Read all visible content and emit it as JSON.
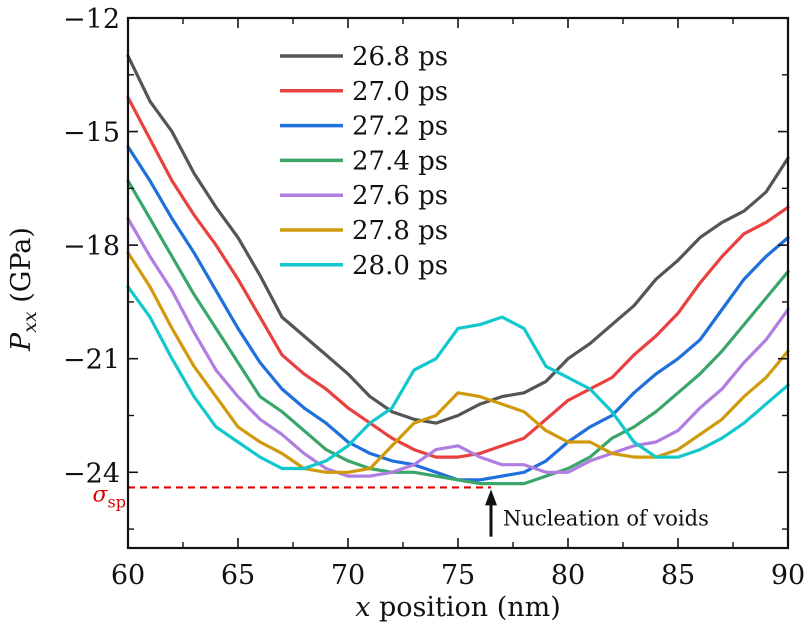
{
  "chart_data": {
    "type": "line",
    "title": "",
    "xlabel_italic": "x",
    "xlabel_rest": " position (nm)",
    "ylabel_italic": "P",
    "ylabel_sub": "xx",
    "ylabel_rest": " (GPa)",
    "xlim": [
      60,
      90
    ],
    "ylim": [
      -26,
      -12
    ],
    "x_major_ticks": [
      60,
      65,
      70,
      75,
      80,
      85,
      90
    ],
    "x_minor_ticks": [
      62.5,
      67.5,
      72.5,
      77.5,
      82.5,
      87.5
    ],
    "y_major_ticks": [
      -12,
      -15,
      -18,
      -21,
      -24
    ],
    "y_minor_ticks": [
      -13.5,
      -16.5,
      -19.5,
      -22.5,
      -25.5
    ],
    "x_tick_labels": [
      "60",
      "65",
      "70",
      "75",
      "80",
      "85",
      "90"
    ],
    "y_tick_labels": [
      "−12",
      "−15",
      "−18",
      "−21",
      "−24"
    ],
    "grid": false,
    "legend_position": "top-center",
    "x": [
      60,
      61,
      62,
      63,
      64,
      65,
      66,
      67,
      68,
      69,
      70,
      71,
      72,
      73,
      74,
      75,
      76,
      77,
      78,
      79,
      80,
      81,
      82,
      83,
      84,
      85,
      86,
      87,
      88,
      89,
      90
    ],
    "series": [
      {
        "name": "26.8 ps",
        "color": "#555555",
        "values": [
          -13.0,
          -14.2,
          -15.0,
          -16.1,
          -17.0,
          -17.8,
          -18.8,
          -19.9,
          -20.4,
          -20.9,
          -21.4,
          -22.0,
          -22.4,
          -22.6,
          -22.7,
          -22.5,
          -22.2,
          -22.0,
          -21.9,
          -21.6,
          -21.0,
          -20.6,
          -20.1,
          -19.6,
          -18.9,
          -18.4,
          -17.8,
          -17.4,
          -17.1,
          -16.6,
          -15.7
        ]
      },
      {
        "name": "27.0 ps",
        "color": "#e8413f",
        "values": [
          -14.1,
          -15.2,
          -16.3,
          -17.2,
          -18.0,
          -18.9,
          -19.9,
          -20.9,
          -21.4,
          -21.8,
          -22.3,
          -22.7,
          -23.1,
          -23.4,
          -23.6,
          -23.6,
          -23.5,
          -23.3,
          -23.1,
          -22.6,
          -22.1,
          -21.8,
          -21.5,
          -20.9,
          -20.4,
          -19.8,
          -19.0,
          -18.3,
          -17.7,
          -17.4,
          -17.0
        ]
      },
      {
        "name": "27.2 ps",
        "color": "#1f6fdc",
        "values": [
          -15.4,
          -16.3,
          -17.3,
          -18.2,
          -19.2,
          -20.2,
          -21.1,
          -21.8,
          -22.3,
          -22.7,
          -23.2,
          -23.5,
          -23.7,
          -23.8,
          -24.0,
          -24.2,
          -24.2,
          -24.1,
          -24.0,
          -23.7,
          -23.2,
          -22.8,
          -22.5,
          -21.9,
          -21.4,
          -21.0,
          -20.5,
          -19.7,
          -18.9,
          -18.3,
          -17.8
        ]
      },
      {
        "name": "27.4 ps",
        "color": "#3aa66a",
        "values": [
          -16.3,
          -17.3,
          -18.3,
          -19.3,
          -20.2,
          -21.1,
          -22.0,
          -22.4,
          -22.9,
          -23.4,
          -23.7,
          -23.9,
          -24.0,
          -24.0,
          -24.1,
          -24.2,
          -24.3,
          -24.3,
          -24.3,
          -24.1,
          -23.9,
          -23.6,
          -23.1,
          -22.8,
          -22.4,
          -21.9,
          -21.4,
          -20.8,
          -20.1,
          -19.4,
          -18.7
        ]
      },
      {
        "name": "27.6 ps",
        "color": "#b07ee0",
        "values": [
          -17.3,
          -18.3,
          -19.2,
          -20.3,
          -21.3,
          -22.0,
          -22.6,
          -23.0,
          -23.5,
          -23.9,
          -24.1,
          -24.1,
          -24.0,
          -23.8,
          -23.4,
          -23.3,
          -23.6,
          -23.8,
          -23.8,
          -24.0,
          -24.0,
          -23.7,
          -23.5,
          -23.3,
          -23.2,
          -22.9,
          -22.3,
          -21.8,
          -21.1,
          -20.5,
          -19.7
        ]
      },
      {
        "name": "27.8 ps",
        "color": "#d09a0c",
        "values": [
          -18.2,
          -19.1,
          -20.2,
          -21.2,
          -22.0,
          -22.8,
          -23.2,
          -23.5,
          -23.9,
          -24.0,
          -24.0,
          -23.9,
          -23.3,
          -22.7,
          -22.5,
          -21.9,
          -22.0,
          -22.2,
          -22.4,
          -22.9,
          -23.2,
          -23.2,
          -23.5,
          -23.6,
          -23.6,
          -23.4,
          -23.0,
          -22.6,
          -22.0,
          -21.5,
          -20.8
        ]
      },
      {
        "name": "28.0 ps",
        "color": "#12c8cc",
        "values": [
          -19.1,
          -19.9,
          -21.0,
          -22.0,
          -22.8,
          -23.2,
          -23.6,
          -23.9,
          -23.9,
          -23.7,
          -23.3,
          -22.7,
          -22.3,
          -21.3,
          -21.0,
          -20.2,
          -20.1,
          -19.9,
          -20.2,
          -21.2,
          -21.5,
          -21.8,
          -22.4,
          -23.2,
          -23.6,
          -23.6,
          -23.4,
          -23.1,
          -22.7,
          -22.2,
          -21.7
        ]
      }
    ],
    "reference_line": {
      "label_main": "σ",
      "label_sub": "sp",
      "value": -24.4,
      "x_end": 76.5,
      "color": "#e00000",
      "style": "dashed"
    },
    "annotation": {
      "text": "Nucleation of voids",
      "arrow_x": 76.5,
      "arrow_from_y": -25.7,
      "arrow_to_y": -24.45
    }
  }
}
